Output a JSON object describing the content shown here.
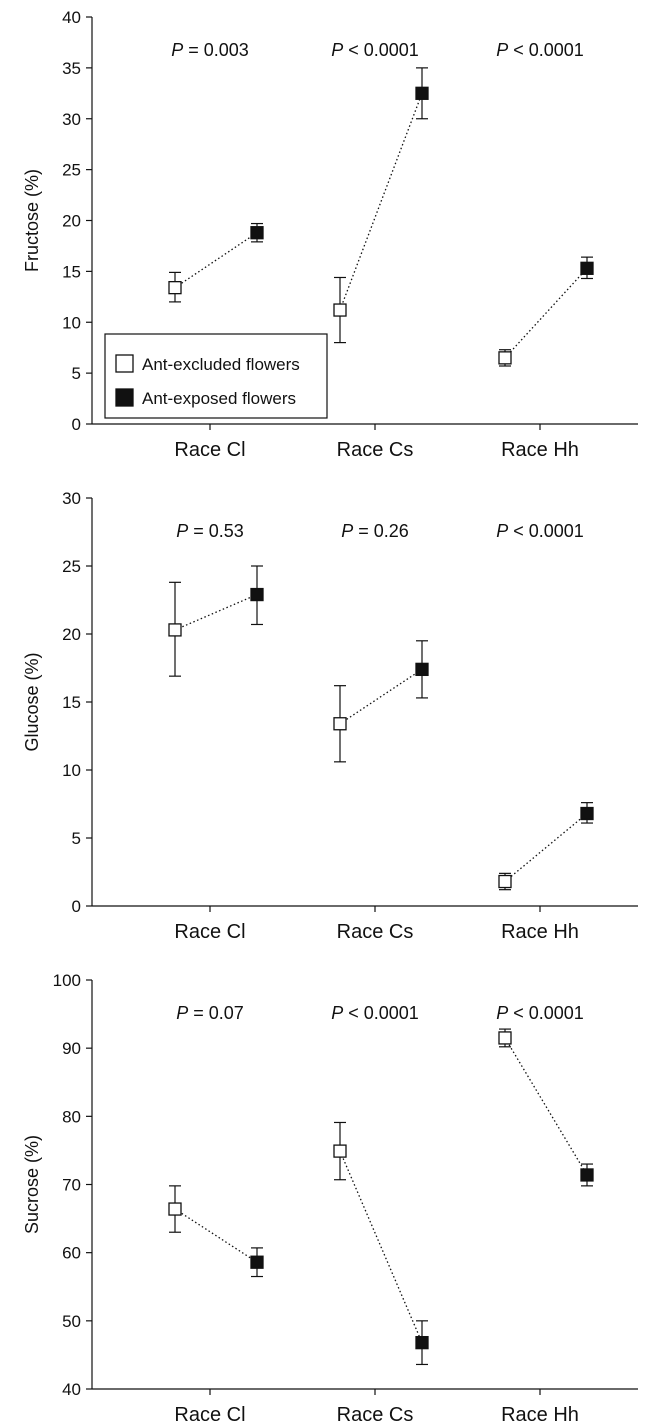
{
  "legend": {
    "excluded_label": "Ant-excluded flowers",
    "exposed_label": "Ant-exposed flowers",
    "placement": "bottom-left of first panel"
  },
  "colors": {
    "excluded_fill": "#ffffff",
    "exposed_fill": "#111111",
    "line": "#111111"
  },
  "chart_data": [
    {
      "type": "scatter",
      "ylabel": "Fructose (%)",
      "ylim": [
        0,
        40
      ],
      "yticks": [
        0,
        5,
        10,
        15,
        20,
        25,
        30,
        35,
        40
      ],
      "categories": [
        "Race Cl",
        "Race Cs",
        "Race Hh"
      ],
      "p_values": [
        {
          "italic": "P",
          "rest": " = 0.003"
        },
        {
          "italic": "P",
          "rest": " < 0.0001"
        },
        {
          "italic": "P",
          "rest": " < 0.0001"
        }
      ],
      "series": [
        {
          "name": "Ant-excluded flowers",
          "values": [
            13.4,
            11.2,
            6.5
          ],
          "err_low": [
            12.0,
            8.0,
            5.7
          ],
          "err_high": [
            14.9,
            14.4,
            7.3
          ]
        },
        {
          "name": "Ant-exposed flowers",
          "values": [
            18.8,
            32.5,
            15.3
          ],
          "err_low": [
            17.9,
            30.0,
            14.3
          ],
          "err_high": [
            19.7,
            35.0,
            16.4
          ]
        }
      ]
    },
    {
      "type": "scatter",
      "ylabel": "Glucose (%)",
      "ylim": [
        0,
        30
      ],
      "yticks": [
        0,
        5,
        10,
        15,
        20,
        25,
        30
      ],
      "categories": [
        "Race Cl",
        "Race Cs",
        "Race Hh"
      ],
      "p_values": [
        {
          "italic": "P",
          "rest": " = 0.53"
        },
        {
          "italic": "P",
          "rest": " = 0.26"
        },
        {
          "italic": "P",
          "rest": " < 0.0001"
        }
      ],
      "series": [
        {
          "name": "Ant-excluded flowers",
          "values": [
            20.3,
            13.4,
            1.8
          ],
          "err_low": [
            16.9,
            10.6,
            1.2
          ],
          "err_high": [
            23.8,
            16.2,
            2.4
          ]
        },
        {
          "name": "Ant-exposed flowers",
          "values": [
            22.9,
            17.4,
            6.8
          ],
          "err_low": [
            20.7,
            15.3,
            6.1
          ],
          "err_high": [
            25.0,
            19.5,
            7.6
          ]
        }
      ]
    },
    {
      "type": "scatter",
      "ylabel": "Sucrose (%)",
      "ylim": [
        40,
        100
      ],
      "yticks": [
        40,
        50,
        60,
        70,
        80,
        90,
        100
      ],
      "categories": [
        "Race Cl",
        "Race Cs",
        "Race Hh"
      ],
      "p_values": [
        {
          "italic": "P",
          "rest": " = 0.07"
        },
        {
          "italic": "P",
          "rest": " < 0.0001"
        },
        {
          "italic": "P",
          "rest": " < 0.0001"
        }
      ],
      "series": [
        {
          "name": "Ant-excluded flowers",
          "values": [
            66.4,
            74.9,
            91.5
          ],
          "err_low": [
            63.0,
            70.7,
            90.2
          ],
          "err_high": [
            69.8,
            79.1,
            92.8
          ]
        },
        {
          "name": "Ant-exposed flowers",
          "values": [
            58.6,
            46.8,
            71.4
          ],
          "err_low": [
            56.5,
            43.6,
            69.8
          ],
          "err_high": [
            60.7,
            50.0,
            73.0
          ]
        }
      ]
    }
  ]
}
